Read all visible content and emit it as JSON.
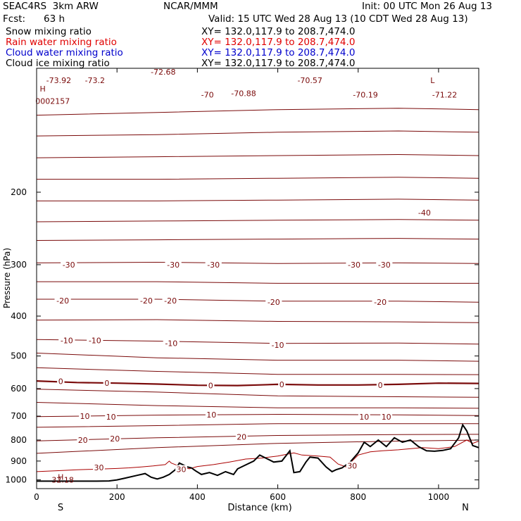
{
  "header": {
    "model": "SEAC4RS  3km ARW",
    "org": "NCAR/MMM",
    "init": "Init: 00 UTC Mon 26 Aug 13",
    "fcst_label": "Fcst:",
    "fcst_value": "63 h",
    "valid": "Valid: 15 UTC Wed 28 Aug 13 (10 CDT Wed 28 Aug 13)"
  },
  "fields": [
    {
      "name": "Snow mixing ratio",
      "xy": "XY= 132.0,117.9 to 208.7,474.0",
      "color": "#000000"
    },
    {
      "name": "Rain water mixing ratio",
      "xy": "XY= 132.0,117.9 to 208.7,474.0",
      "color": "#e00000"
    },
    {
      "name": "Cloud water mixing ratio",
      "xy": "XY= 132.0,117.9 to 208.7,474.0",
      "color": "#0000cc"
    },
    {
      "name": "Cloud ice mixing ratio",
      "xy": "XY= 132.0,117.9 to 208.7,474.0",
      "color": "#000000"
    }
  ],
  "colors": {
    "isotherm": "#7a0a0a",
    "isotherm_zero": "#7a0a0a",
    "terrain": "#000000",
    "rain": "#aa0000"
  },
  "chart_data": {
    "type": "line",
    "xlabel": "Distance (km)",
    "ylabel": "Pressure (hPa)",
    "xlim": [
      0,
      1100
    ],
    "ylim": [
      1050,
      100
    ],
    "y_scale": "log",
    "grid": false,
    "x_ticks": [
      "0",
      "200",
      "400",
      "600",
      "800",
      "1000"
    ],
    "y_ticks": [
      "200",
      "300",
      "400",
      "500",
      "600",
      "700",
      "800",
      "900",
      "1000"
    ],
    "end_labels": {
      "left": "S",
      "right": "N"
    },
    "extrema": [
      {
        "text": "H",
        "x": 15,
        "p": 112
      },
      {
        "text": "0002157",
        "x": 40,
        "p": 120
      },
      {
        "text": "H",
        "x": 60,
        "p": 983
      },
      {
        "text": "32.18",
        "x": 65,
        "p": 1000
      },
      {
        "text": "L",
        "x": 985,
        "p": 107
      }
    ],
    "contour_labels": [
      {
        "text": "-73.92",
        "x": 55,
        "p": 107
      },
      {
        "text": "-73.2",
        "x": 145,
        "p": 107
      },
      {
        "text": "-72.68",
        "x": 315,
        "p": 102
      },
      {
        "text": "-70.88",
        "x": 515,
        "p": 115
      },
      {
        "text": "-70.57",
        "x": 680,
        "p": 107
      },
      {
        "text": "-70.19",
        "x": 818,
        "p": 116
      },
      {
        "text": "-71.22",
        "x": 1015,
        "p": 116
      },
      {
        "text": "-70",
        "x": 425,
        "p": 116
      },
      {
        "text": "-40",
        "x": 965,
        "p": 224
      },
      {
        "text": "-30",
        "x": 80,
        "p": 300
      },
      {
        "text": "-30",
        "x": 340,
        "p": 300
      },
      {
        "text": "-30",
        "x": 440,
        "p": 300
      },
      {
        "text": "-30",
        "x": 790,
        "p": 300
      },
      {
        "text": "-30",
        "x": 865,
        "p": 300
      },
      {
        "text": "-20",
        "x": 65,
        "p": 367
      },
      {
        "text": "-20",
        "x": 273,
        "p": 367
      },
      {
        "text": "-20",
        "x": 333,
        "p": 367
      },
      {
        "text": "-20",
        "x": 590,
        "p": 370
      },
      {
        "text": "-20",
        "x": 855,
        "p": 370
      },
      {
        "text": "-10",
        "x": 75,
        "p": 458
      },
      {
        "text": "-10",
        "x": 145,
        "p": 458
      },
      {
        "text": "-10",
        "x": 335,
        "p": 466
      },
      {
        "text": "-10",
        "x": 600,
        "p": 470
      },
      {
        "text": "0",
        "x": 60,
        "p": 576
      },
      {
        "text": "0",
        "x": 175,
        "p": 582
      },
      {
        "text": "0",
        "x": 433,
        "p": 590
      },
      {
        "text": "0",
        "x": 610,
        "p": 586
      },
      {
        "text": "0",
        "x": 855,
        "p": 588
      },
      {
        "text": "10",
        "x": 120,
        "p": 700
      },
      {
        "text": "10",
        "x": 185,
        "p": 702
      },
      {
        "text": "10",
        "x": 435,
        "p": 695
      },
      {
        "text": "10",
        "x": 815,
        "p": 702
      },
      {
        "text": "10",
        "x": 870,
        "p": 702
      },
      {
        "text": "20",
        "x": 115,
        "p": 800
      },
      {
        "text": "20",
        "x": 195,
        "p": 794
      },
      {
        "text": "20",
        "x": 510,
        "p": 786
      },
      {
        "text": "30",
        "x": 155,
        "p": 933
      },
      {
        "text": "30",
        "x": 360,
        "p": 943
      },
      {
        "text": "30",
        "x": 785,
        "p": 924
      }
    ],
    "isotherms": [
      {
        "x": [
          0,
          300,
          600,
          900,
          1100
        ],
        "p": [
          130,
          128,
          126,
          125,
          126
        ]
      },
      {
        "x": [
          0,
          300,
          600,
          900,
          1100
        ],
        "p": [
          146,
          145,
          143,
          142,
          143
        ]
      },
      {
        "x": [
          0,
          300,
          600,
          900,
          1100
        ],
        "p": [
          165,
          164,
          163,
          162,
          163
        ]
      },
      {
        "x": [
          0,
          300,
          600,
          900,
          1100
        ],
        "p": [
          186,
          186,
          185,
          184,
          185
        ]
      },
      {
        "x": [
          0,
          300,
          600,
          900,
          1100
        ],
        "p": [
          210,
          210,
          209,
          208,
          209
        ]
      },
      {
        "x": [
          0,
          300,
          600,
          900,
          1100
        ],
        "p": [
          236,
          235,
          234,
          233,
          234
        ]
      },
      {
        "x": [
          0,
          300,
          600,
          900,
          1100
        ],
        "p": [
          262,
          261,
          260,
          259,
          260
        ]
      },
      {
        "x": [
          0,
          300,
          600,
          900,
          1100
        ],
        "p": [
          297,
          296,
          298,
          297,
          298
        ]
      },
      {
        "x": [
          0,
          300,
          600,
          900,
          1100
        ],
        "p": [
          330,
          330,
          333,
          333,
          333
        ]
      },
      {
        "x": [
          0,
          300,
          600,
          900,
          1100
        ],
        "p": [
          364,
          364,
          368,
          368,
          370
        ]
      },
      {
        "x": [
          0,
          300,
          600,
          900,
          1100
        ],
        "p": [
          409,
          408,
          412,
          413,
          415
        ]
      },
      {
        "x": [
          0,
          300,
          600,
          900,
          1100
        ],
        "p": [
          456,
          460,
          466,
          465,
          468
        ]
      },
      {
        "x": [
          0,
          300,
          600,
          900,
          1100
        ],
        "p": [
          492,
          505,
          512,
          512,
          515
        ]
      },
      {
        "x": [
          0,
          300,
          600,
          900,
          1100
        ],
        "p": [
          534,
          545,
          554,
          554,
          555
        ]
      },
      {
        "x": [
          0,
          300,
          600,
          900,
          1100
        ],
        "p": [
          602,
          612,
          625,
          628,
          630
        ]
      },
      {
        "x": [
          0,
          300,
          600,
          900,
          1100
        ],
        "p": [
          648,
          660,
          668,
          668,
          670
        ]
      },
      {
        "x": [
          0,
          300,
          600,
          900,
          1100
        ],
        "p": [
          702,
          696,
          693,
          695,
          698
        ]
      },
      {
        "x": [
          0,
          300,
          600,
          900,
          1100
        ],
        "p": [
          745,
          738,
          730,
          730,
          730
        ]
      },
      {
        "x": [
          0,
          300,
          600,
          900,
          1100
        ],
        "p": [
          804,
          790,
          780,
          776,
          775
        ]
      },
      {
        "x": [
          0,
          300,
          600,
          900,
          1100
        ],
        "p": [
          862,
          835,
          815,
          805,
          800
        ]
      }
    ],
    "freezing_level": {
      "x": [
        0,
        100,
        200,
        300,
        400,
        500,
        550,
        600,
        700,
        800,
        900,
        1000,
        1100
      ],
      "p": [
        575,
        580,
        582,
        585,
        589,
        590,
        588,
        586,
        588,
        588,
        586,
        582,
        583
      ]
    },
    "rain_boundary": {
      "x": [
        0,
        50,
        100,
        150,
        200,
        230,
        260,
        290,
        320,
        330,
        335,
        360,
        380,
        400,
        440,
        480,
        520,
        560,
        600,
        640,
        660,
        700,
        730,
        750,
        770,
        800,
        830,
        860,
        900,
        960,
        1000,
        1040,
        1070,
        1085,
        1100
      ],
      "p": [
        955,
        950,
        945,
        942,
        938,
        935,
        930,
        925,
        918,
        900,
        910,
        930,
        940,
        928,
        918,
        905,
        890,
        885,
        875,
        860,
        870,
        875,
        880,
        915,
        930,
        870,
        855,
        850,
        845,
        835,
        840,
        830,
        800,
        815,
        805
      ]
    },
    "terrain": {
      "x": [
        0,
        50,
        100,
        150,
        180,
        200,
        220,
        250,
        270,
        285,
        300,
        315,
        330,
        345,
        355,
        365,
        375,
        385,
        395,
        410,
        430,
        450,
        470,
        490,
        500,
        520,
        540,
        555,
        570,
        590,
        610,
        630,
        640,
        655,
        670,
        680,
        700,
        720,
        735,
        745,
        760,
        780,
        800,
        815,
        830,
        850,
        870,
        890,
        910,
        930,
        950,
        970,
        990,
        1010,
        1030,
        1050,
        1060,
        1070,
        1085,
        1100
      ],
      "p": [
        1007,
        1007,
        1007,
        1007,
        1006,
        1000,
        990,
        975,
        965,
        985,
        995,
        985,
        970,
        945,
        910,
        920,
        930,
        935,
        950,
        970,
        960,
        975,
        955,
        970,
        940,
        920,
        900,
        870,
        885,
        905,
        900,
        850,
        960,
        955,
        905,
        880,
        885,
        930,
        955,
        945,
        935,
        905,
        860,
        810,
        830,
        800,
        830,
        790,
        810,
        800,
        830,
        850,
        852,
        848,
        840,
        790,
        735,
        760,
        825,
        835
      ]
    }
  }
}
